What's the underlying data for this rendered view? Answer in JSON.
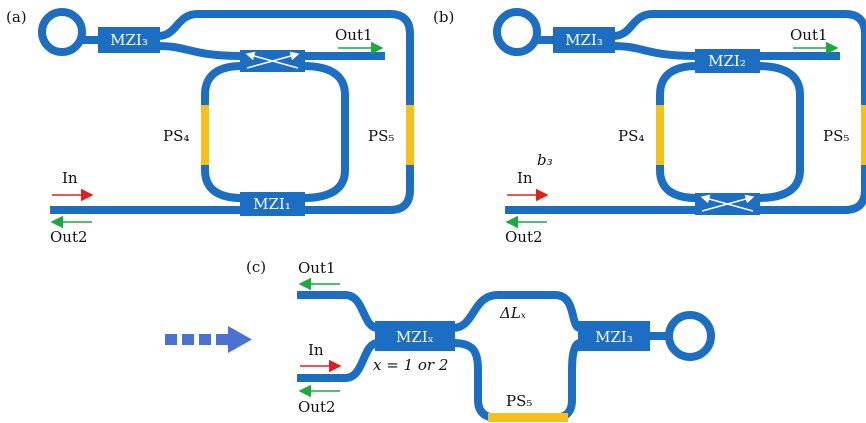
{
  "panel_a": {
    "tag": "(a)",
    "mzi_top": "MZI₃",
    "mzi_bottom": "MZI₁",
    "out1": "Out1",
    "out2": "Out2",
    "in": "In",
    "ps_left": "PS₄",
    "ps_right": "PS₅"
  },
  "panel_b": {
    "tag": "(b)",
    "mzi_top": "MZI₃",
    "mzi_mid": "MZI₂",
    "out1": "Out1",
    "out2": "Out2",
    "in": "In",
    "ps_left": "PS₄",
    "ps_right": "PS₅",
    "note": "b₃"
  },
  "panel_c": {
    "tag": "(c)",
    "mzi_left": "MZIₓ",
    "mzi_right": "MZI₃",
    "out1": "Out1",
    "out2": "Out2",
    "in": "In",
    "delta": "ΔLₓ",
    "ps": "PS₅",
    "condition": "x = 1 or 2"
  }
}
